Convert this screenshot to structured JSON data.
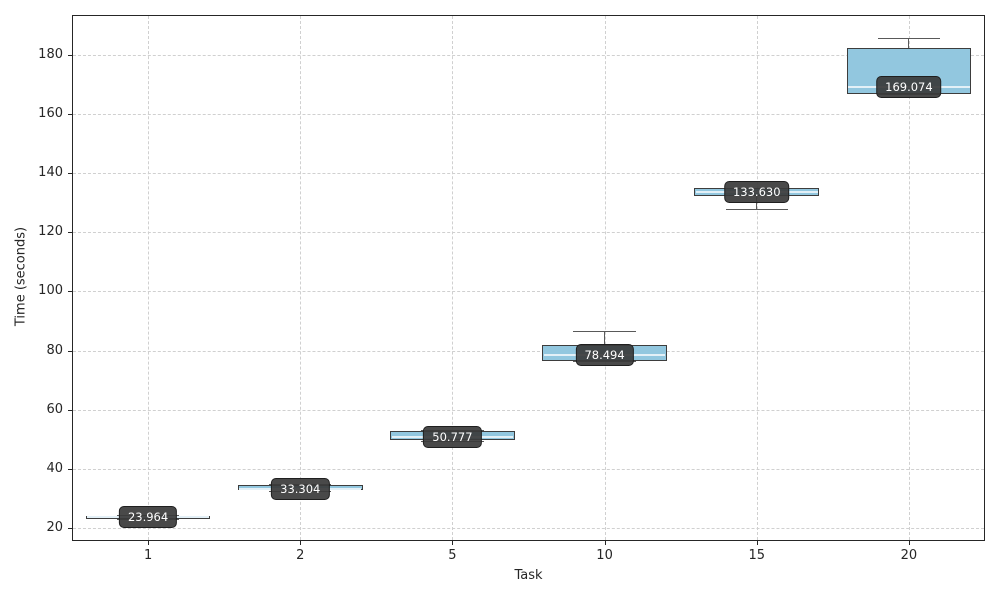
{
  "chart_data": {
    "type": "box",
    "title": "",
    "xlabel": "Task",
    "ylabel": "Time (seconds)",
    "categories": [
      "1",
      "2",
      "5",
      "10",
      "15",
      "20"
    ],
    "y_ticks": [
      20,
      40,
      60,
      80,
      100,
      120,
      140,
      160,
      180
    ],
    "ylim": [
      15.7,
      193.4
    ],
    "grid": true,
    "legend": "none",
    "colors": {
      "box_fill": "#92c7df",
      "box_edge": "#3d3d3d",
      "whisker": "#595959",
      "median_line": "#e3f0f7",
      "gridline": "#d0d0d0",
      "axis": "#262626",
      "label_bg": "#3a3a3a",
      "label_text": "#ffffff"
    },
    "series": [
      {
        "category": "1",
        "min": 23.0,
        "q1": 23.3,
        "median": 23.964,
        "q3": 24.3,
        "max": 24.6,
        "label": "23.964"
      },
      {
        "category": "2",
        "min": 32.7,
        "q1": 33.0,
        "median": 33.304,
        "q3": 34.5,
        "max": 34.8,
        "label": "33.304"
      },
      {
        "category": "5",
        "min": 49.4,
        "q1": 49.8,
        "median": 50.777,
        "q3": 52.9,
        "max": 53.3,
        "label": "50.777"
      },
      {
        "category": "10",
        "min": 76.4,
        "q1": 76.4,
        "median": 78.494,
        "q3": 81.9,
        "max": 86.5,
        "label": "78.494"
      },
      {
        "category": "15",
        "min": 127.7,
        "q1": 132.2,
        "median": 133.63,
        "q3": 134.8,
        "max": 134.8,
        "label": "133.630"
      },
      {
        "category": "20",
        "min": 166.7,
        "q1": 166.7,
        "median": 169.074,
        "q3": 182.2,
        "max": 185.5,
        "label": "169.074"
      }
    ]
  }
}
